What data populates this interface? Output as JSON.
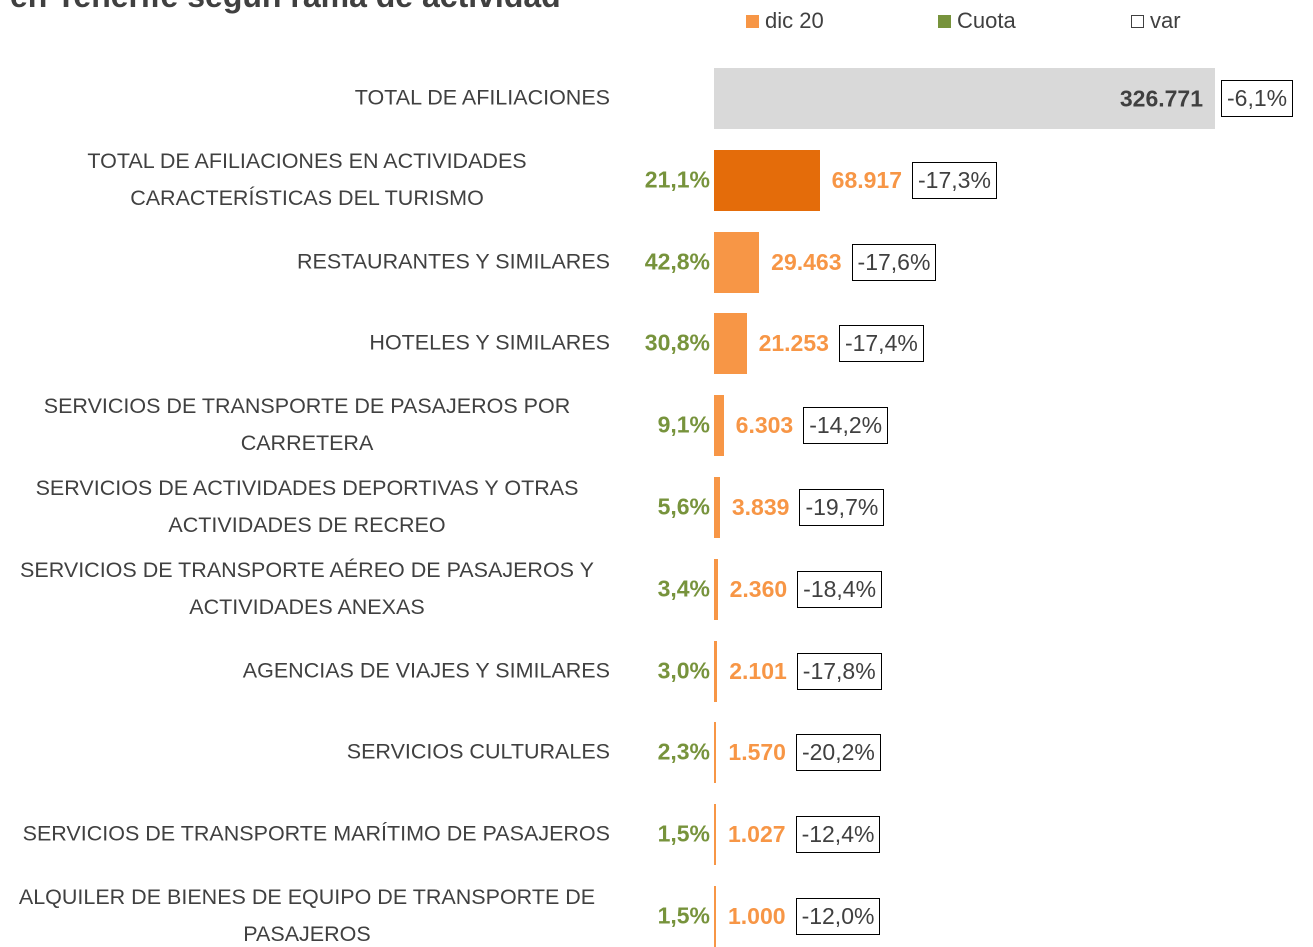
{
  "chart_data": {
    "type": "bar",
    "orientation": "horizontal",
    "title": "en Tenerife según rama de actividad",
    "categories": [
      "TOTAL DE AFILIACIONES",
      "TOTAL DE AFILIACIONES EN ACTIVIDADES CARACTERÍSTICAS DEL TURISMO",
      "RESTAURANTES Y SIMILARES",
      "HOTELES Y SIMILARES",
      "SERVICIOS DE TRANSPORTE DE PASAJEROS POR CARRETERA",
      "SERVICIOS DE ACTIVIDADES DEPORTIVAS Y OTRAS ACTIVIDADES DE RECREO",
      "SERVICIOS DE TRANSPORTE AÉREO DE PASAJEROS Y ACTIVIDADES ANEXAS",
      "AGENCIAS DE VIAJES Y SIMILARES",
      "SERVICIOS CULTURALES",
      "SERVICIOS DE TRANSPORTE MARÍTIMO DE PASAJEROS",
      "ALQUILER DE BIENES DE EQUIPO DE TRANSPORTE DE PASAJEROS"
    ],
    "series": [
      {
        "name": "dic 20",
        "color": "#f79646",
        "colors": [
          "#d9d9d9",
          "#e46c0a",
          "#f79646",
          "#f79646",
          "#f79646",
          "#f79646",
          "#f79646",
          "#f79646",
          "#f79646",
          "#f79646",
          "#f79646"
        ],
        "values": [
          326771,
          68917,
          29463,
          21253,
          6303,
          3839,
          2360,
          2101,
          1570,
          1027,
          1000
        ],
        "value_labels": [
          "326.771",
          "68.917",
          "29.463",
          "21.253",
          "6.303",
          "3.839",
          "2.360",
          "2.101",
          "1.570",
          "1.027",
          "1.000"
        ]
      },
      {
        "name": "Cuota",
        "color": "#77933c",
        "values": [
          null,
          21.1,
          42.8,
          30.8,
          9.1,
          5.6,
          3.4,
          3.0,
          2.3,
          1.5,
          1.5
        ],
        "value_labels": [
          null,
          "21,1%",
          "42,8%",
          "30,8%",
          "9,1%",
          "5,6%",
          "3,4%",
          "3,0%",
          "2,3%",
          "1,5%",
          "1,5%"
        ]
      },
      {
        "name": "var",
        "color": "#ffffff",
        "values": [
          -6.1,
          -17.3,
          -17.6,
          -17.4,
          -14.2,
          -19.7,
          -18.4,
          -17.8,
          -20.2,
          -12.4,
          -12.0
        ],
        "value_labels": [
          "-6,1%",
          "-17,3%",
          "-17,6%",
          "-17,4%",
          "-14,2%",
          "-19,7%",
          "-18,4%",
          "-17,8%",
          "-20,2%",
          "-12,4%",
          "-12,0%"
        ]
      }
    ]
  }
}
